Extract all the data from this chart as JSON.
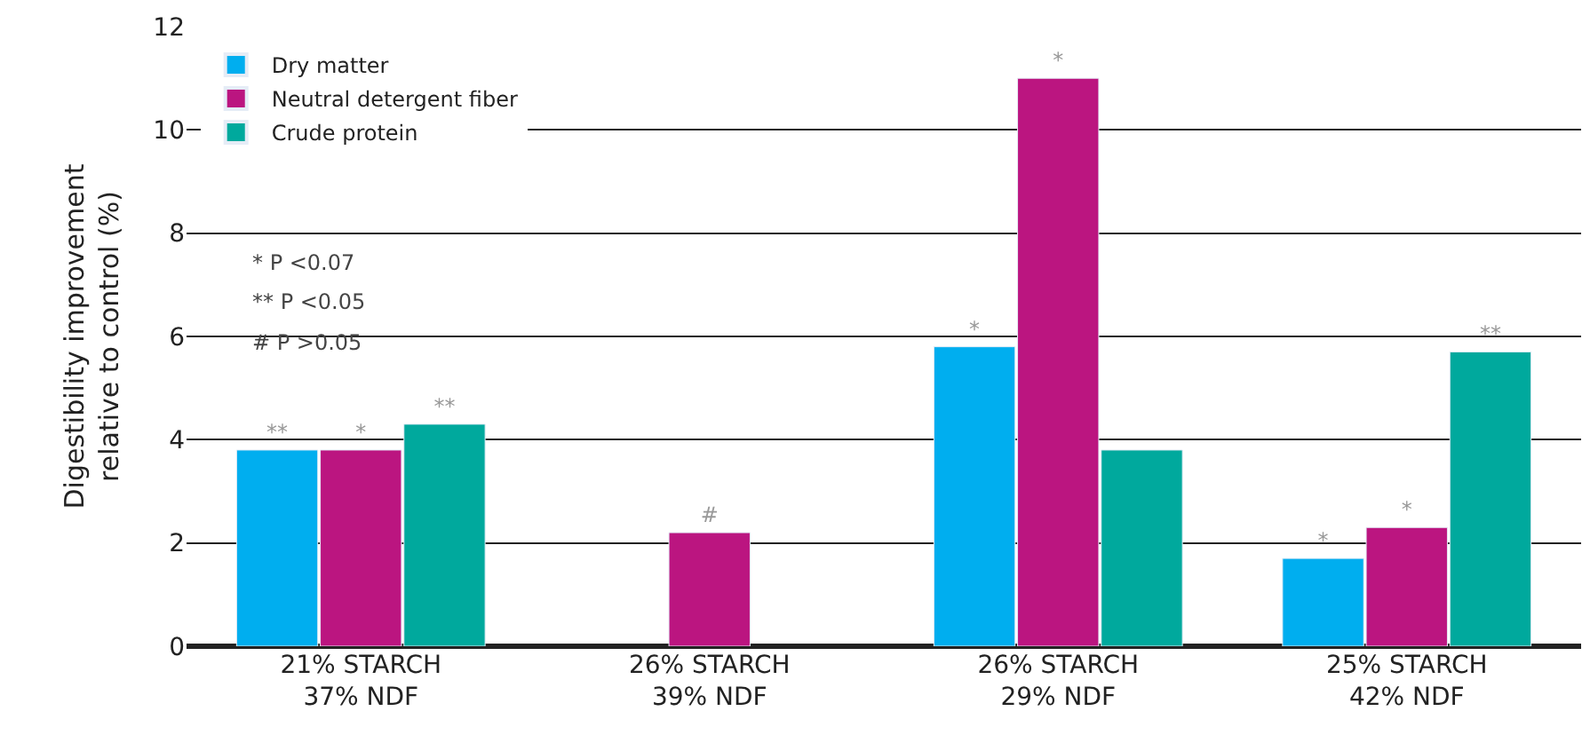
{
  "chart_data": {
    "type": "bar",
    "ylabel": "Digestibility improvement\nrelative to control (%)",
    "categories": [
      "21% STARCH\n37% NDF",
      "26% STARCH\n39% NDF",
      "26% STARCH\n29% NDF",
      "25% STARCH\n42% NDF"
    ],
    "series": [
      {
        "name": "Dry matter",
        "color": "#00aeef",
        "values": [
          3.8,
          null,
          5.8,
          1.7
        ],
        "value_labels": [
          "**",
          null,
          "*",
          "*"
        ]
      },
      {
        "name": "Neutral detergent fiber",
        "color": "#bb1580",
        "values": [
          3.8,
          2.2,
          11.0,
          2.3
        ],
        "value_labels": [
          "*",
          "#",
          "*",
          "*"
        ]
      },
      {
        "name": "Crude protein",
        "color": "#00a99d",
        "values": [
          4.3,
          null,
          3.8,
          5.7
        ],
        "value_labels": [
          "**",
          null,
          null,
          "**"
        ]
      }
    ],
    "ylim": [
      0,
      12
    ],
    "yticks": [
      0,
      2,
      4,
      6,
      8,
      10,
      12
    ],
    "grid": "y",
    "legend": "top left",
    "annotations": [
      "* P <0.07",
      "** P <0.05",
      "# P >0.05"
    ]
  }
}
